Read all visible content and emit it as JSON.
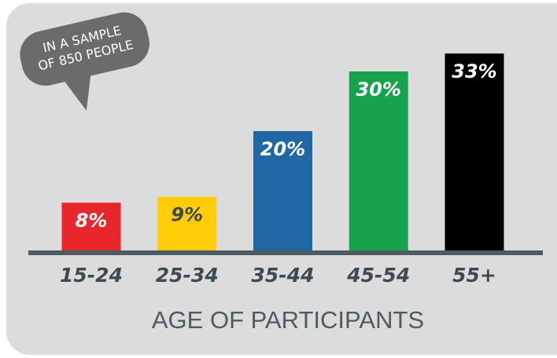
{
  "chart_data": {
    "type": "bar",
    "annotation": [
      "IN A SAMPLE",
      "OF 850 PEOPLE"
    ],
    "xlabel": "AGE OF PARTICIPANTS",
    "categories": [
      "15-24",
      "25-34",
      "35-44",
      "45-54",
      "55+"
    ],
    "values": [
      8,
      9,
      20,
      30,
      33
    ],
    "value_labels": [
      "8%",
      "9%",
      "20%",
      "30%",
      "33%"
    ],
    "colors": [
      "#e8262b",
      "#ffcc0a",
      "#1f68a3",
      "#17a24b",
      "#000000"
    ],
    "label_colors": [
      "#ffffff",
      "#3d4a52",
      "#ffffff",
      "#ffffff",
      "#ffffff"
    ]
  }
}
